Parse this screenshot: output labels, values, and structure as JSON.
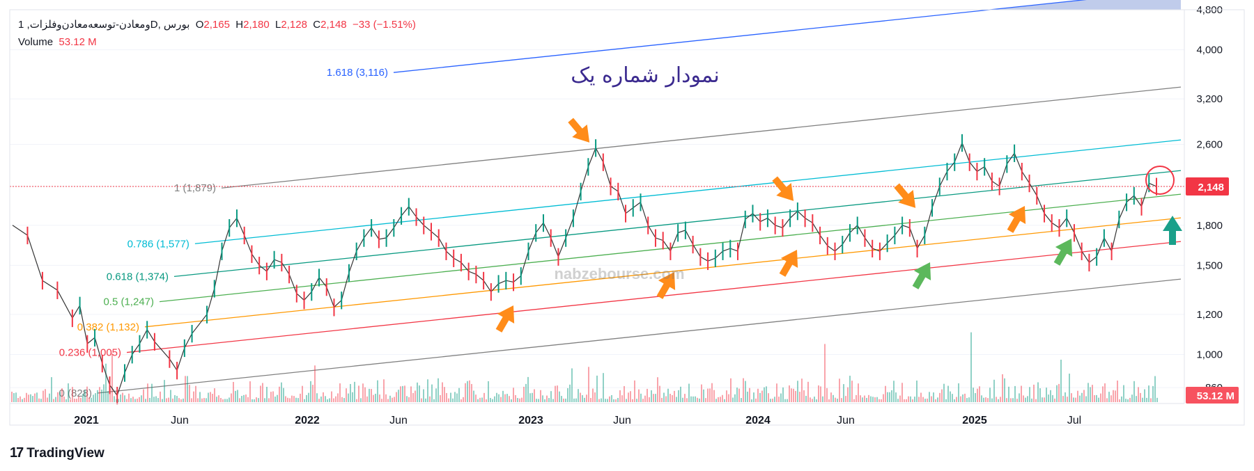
{
  "legend": {
    "symbol": "1 ,ومعادن-توسعه‌معادن‌وفلزات",
    "interval": "D",
    "exchange": "بورس",
    "o_label": "O",
    "o": "2,165",
    "h_label": "H",
    "h": "2,180",
    "l_label": "L",
    "l": "2,128",
    "c_label": "C",
    "c": "2,148",
    "change": "−33 (−1.51%)",
    "volume_label": "Volume",
    "volume": "53.12 M"
  },
  "branding": {
    "name": "TradingView"
  },
  "chart_data": {
    "type": "line",
    "title": "نمودار شماره یک",
    "watermark": "nabzebourse.com",
    "y_scale": "log",
    "ylim": [
      800,
      4800
    ],
    "y_ticks": [
      860,
      1000,
      1200,
      1500,
      1800,
      2148,
      2600,
      3200,
      4000,
      4800
    ],
    "y_tick_labels": [
      "860",
      "1,000",
      "1,200",
      "1,500",
      "1,800",
      "2,148",
      "2,600",
      "3,200",
      "4,000",
      "4,800"
    ],
    "x_ticks": [
      "2021",
      "Jun",
      "2022",
      "Jun",
      "2023",
      "Jun",
      "2024",
      "Jun",
      "2025",
      "Jul"
    ],
    "last_price": 2148,
    "last_price_label": "2,148",
    "last_volume_label": "53.12 M",
    "fib_levels": [
      {
        "level": 0,
        "label": "0 (828)",
        "color": "#808080"
      },
      {
        "level": 0.236,
        "label": "0.236 (1,005)",
        "color": "#f23645"
      },
      {
        "level": 0.382,
        "label": "0.382 (1,132)",
        "color": "#ff9800"
      },
      {
        "level": 0.5,
        "label": "0.5 (1,247)",
        "color": "#4caf50"
      },
      {
        "level": 0.618,
        "label": "0.618 (1,374)",
        "color": "#089981"
      },
      {
        "level": 0.786,
        "label": "0.786 (1,577)",
        "color": "#00bcd4"
      },
      {
        "level": 1,
        "label": "1 (1,879)",
        "color": "#808080"
      },
      {
        "level": 1.618,
        "label": "1.618 (3,116)",
        "color": "#2962ff"
      }
    ],
    "price_series": [
      [
        0,
        1800
      ],
      [
        0.02,
        1720
      ],
      [
        0.04,
        1400
      ],
      [
        0.06,
        1340
      ],
      [
        0.08,
        1180
      ],
      [
        0.09,
        1250
      ],
      [
        0.1,
        1050
      ],
      [
        0.11,
        1080
      ],
      [
        0.12,
        960
      ],
      [
        0.13,
        870
      ],
      [
        0.14,
        830
      ],
      [
        0.15,
        920
      ],
      [
        0.16,
        1000
      ],
      [
        0.17,
        1050
      ],
      [
        0.18,
        1120
      ],
      [
        0.19,
        1060
      ],
      [
        0.21,
        980
      ],
      [
        0.22,
        930
      ],
      [
        0.23,
        1030
      ],
      [
        0.24,
        1100
      ],
      [
        0.26,
        1200
      ],
      [
        0.27,
        1350
      ],
      [
        0.28,
        1600
      ],
      [
        0.29,
        1780
      ],
      [
        0.3,
        1860
      ],
      [
        0.31,
        1720
      ],
      [
        0.32,
        1580
      ],
      [
        0.33,
        1500
      ],
      [
        0.34,
        1460
      ],
      [
        0.35,
        1540
      ],
      [
        0.36,
        1520
      ],
      [
        0.37,
        1440
      ],
      [
        0.38,
        1320
      ],
      [
        0.39,
        1280
      ],
      [
        0.4,
        1330
      ],
      [
        0.41,
        1420
      ],
      [
        0.42,
        1360
      ],
      [
        0.43,
        1240
      ],
      [
        0.44,
        1280
      ],
      [
        0.45,
        1450
      ],
      [
        0.46,
        1600
      ],
      [
        0.47,
        1700
      ],
      [
        0.48,
        1780
      ],
      [
        0.49,
        1690
      ],
      [
        0.5,
        1700
      ],
      [
        0.51,
        1780
      ],
      [
        0.52,
        1880
      ],
      [
        0.53,
        1960
      ],
      [
        0.54,
        1870
      ],
      [
        0.55,
        1800
      ],
      [
        0.56,
        1750
      ],
      [
        0.57,
        1700
      ],
      [
        0.58,
        1600
      ],
      [
        0.59,
        1550
      ],
      [
        0.6,
        1520
      ],
      [
        0.61,
        1460
      ],
      [
        0.62,
        1440
      ],
      [
        0.63,
        1400
      ],
      [
        0.64,
        1330
      ],
      [
        0.65,
        1380
      ],
      [
        0.66,
        1400
      ],
      [
        0.67,
        1390
      ],
      [
        0.68,
        1430
      ],
      [
        0.69,
        1600
      ],
      [
        0.7,
        1740
      ],
      [
        0.71,
        1820
      ],
      [
        0.72,
        1700
      ],
      [
        0.73,
        1560
      ],
      [
        0.74,
        1700
      ],
      [
        0.75,
        1860
      ],
      [
        0.76,
        2100
      ],
      [
        0.77,
        2350
      ],
      [
        0.78,
        2560
      ],
      [
        0.79,
        2400
      ],
      [
        0.8,
        2150
      ],
      [
        0.81,
        2100
      ],
      [
        0.82,
        1900
      ],
      [
        0.83,
        1950
      ],
      [
        0.84,
        2000
      ],
      [
        0.85,
        1800
      ],
      [
        0.86,
        1700
      ],
      [
        0.87,
        1680
      ],
      [
        0.88,
        1600
      ],
      [
        0.89,
        1740
      ],
      [
        0.9,
        1760
      ],
      [
        0.91,
        1650
      ],
      [
        0.92,
        1560
      ],
      [
        0.93,
        1530
      ],
      [
        0.94,
        1550
      ],
      [
        0.95,
        1600
      ],
      [
        0.96,
        1620
      ],
      [
        0.97,
        1600
      ],
      [
        0.98,
        1850
      ],
      [
        0.99,
        1900
      ],
      [
        1.0,
        1830
      ],
      [
        1.01,
        1860
      ],
      [
        1.02,
        1800
      ],
      [
        1.03,
        1780
      ],
      [
        1.04,
        1860
      ],
      [
        1.05,
        1920
      ],
      [
        1.06,
        1860
      ],
      [
        1.07,
        1820
      ],
      [
        1.08,
        1720
      ],
      [
        1.09,
        1640
      ],
      [
        1.1,
        1600
      ],
      [
        1.11,
        1650
      ],
      [
        1.12,
        1740
      ],
      [
        1.13,
        1800
      ],
      [
        1.14,
        1700
      ],
      [
        1.15,
        1620
      ],
      [
        1.16,
        1600
      ],
      [
        1.17,
        1660
      ],
      [
        1.18,
        1720
      ],
      [
        1.19,
        1800
      ],
      [
        1.2,
        1780
      ],
      [
        1.21,
        1620
      ],
      [
        1.22,
        1720
      ],
      [
        1.23,
        1950
      ],
      [
        1.24,
        2150
      ],
      [
        1.25,
        2300
      ],
      [
        1.26,
        2400
      ],
      [
        1.27,
        2620
      ],
      [
        1.28,
        2400
      ],
      [
        1.29,
        2300
      ],
      [
        1.3,
        2350
      ],
      [
        1.31,
        2200
      ],
      [
        1.32,
        2150
      ],
      [
        1.33,
        2380
      ],
      [
        1.34,
        2500
      ],
      [
        1.35,
        2300
      ],
      [
        1.36,
        2180
      ],
      [
        1.37,
        2060
      ],
      [
        1.38,
        1900
      ],
      [
        1.39,
        1820
      ],
      [
        1.4,
        1780
      ],
      [
        1.41,
        1860
      ],
      [
        1.42,
        1740
      ],
      [
        1.43,
        1600
      ],
      [
        1.44,
        1520
      ],
      [
        1.45,
        1560
      ],
      [
        1.46,
        1700
      ],
      [
        1.47,
        1600
      ],
      [
        1.48,
        1850
      ],
      [
        1.49,
        2000
      ],
      [
        1.5,
        2060
      ],
      [
        1.51,
        1960
      ],
      [
        1.52,
        2180
      ],
      [
        1.53,
        2148
      ]
    ],
    "volume_series_note": ""
  }
}
